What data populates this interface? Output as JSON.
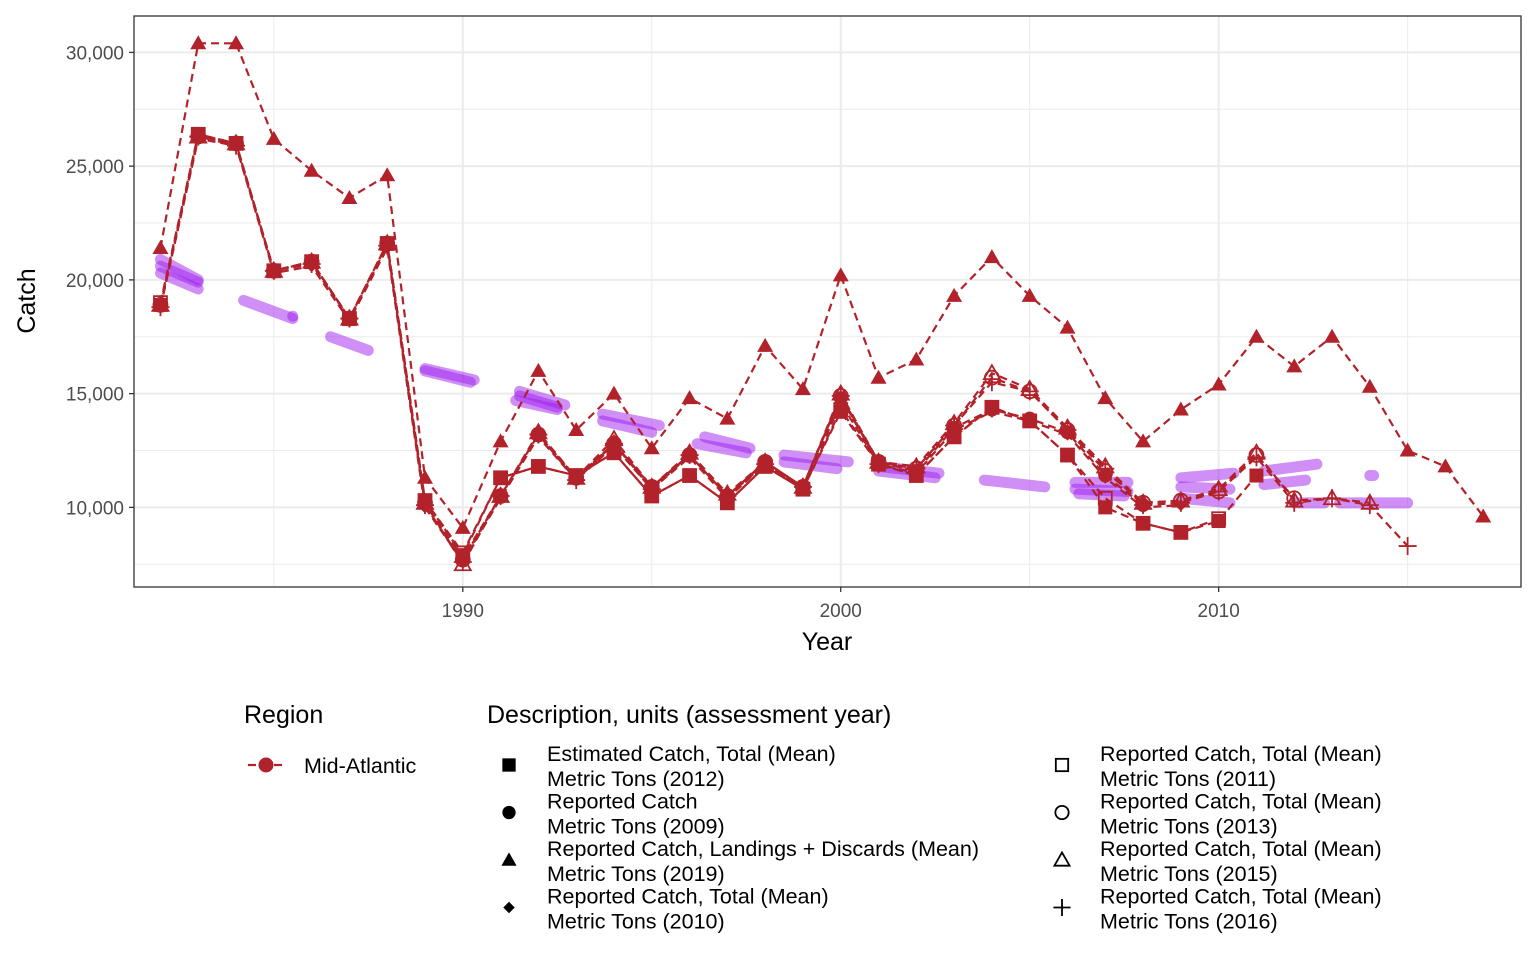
{
  "chart_data": {
    "type": "line",
    "xlabel": "Year",
    "ylabel": "Catch",
    "xlim": [
      1981.3,
      2018.0
    ],
    "ylim": [
      6500,
      31600
    ],
    "x_ticks": [
      1990,
      2000,
      2010
    ],
    "x_tick_labels": [
      "1990",
      "2000",
      "2010"
    ],
    "y_ticks": [
      10000,
      15000,
      20000,
      25000,
      30000
    ],
    "y_tick_labels": [
      "10,000",
      "15,000",
      "20,000",
      "25,000",
      "30,000"
    ],
    "grid": true,
    "colors": {
      "series": "#B2222A",
      "trend": "#A020F0",
      "panel_border": "#333333",
      "grid": "#EBEBEB"
    },
    "series": [
      {
        "name": "Estimated Catch, Total (Mean) Metric Tons (2012)",
        "shape": "square",
        "x": [
          1982,
          1983,
          1984,
          1985,
          1986,
          1987,
          1988,
          1989,
          1990,
          1991,
          1992,
          1993,
          1994,
          1995,
          1996,
          1997,
          1998,
          1999,
          2000,
          2001,
          2002,
          2003,
          2004,
          2005,
          2006,
          2007,
          2008,
          2009,
          2010,
          2011
        ],
        "y": [
          18900,
          26400,
          26000,
          20400,
          20800,
          18300,
          21600,
          10300,
          7900,
          11300,
          11800,
          11400,
          12400,
          10500,
          11400,
          10200,
          11800,
          10800,
          14200,
          11900,
          11400,
          13100,
          14400,
          13800,
          12300,
          10000,
          9300,
          8900,
          9400,
          11400
        ]
      },
      {
        "name": "Reported Catch Metric Tons (2009)",
        "shape": "circle",
        "x": [
          1982,
          1983,
          1984,
          1985,
          1986,
          1987,
          1988,
          1989,
          1990,
          1991,
          1992,
          1993,
          1994,
          1995,
          1996,
          1997,
          1998,
          1999,
          2000,
          2001,
          2002,
          2003,
          2004,
          2005,
          2006,
          2007,
          2008
        ],
        "y": [
          18900,
          26300,
          26000,
          20400,
          20800,
          18300,
          21600,
          10200,
          7800,
          10500,
          13200,
          11300,
          12800,
          10900,
          12300,
          10500,
          12000,
          10900,
          14800,
          12000,
          11600,
          13500,
          14300,
          13900,
          13300,
          11400,
          10100
        ]
      },
      {
        "name": "Reported Catch, Landings + Discards (Mean) Metric Tons (2019)",
        "shape": "triangle",
        "x": [
          1982,
          1983,
          1984,
          1985,
          1986,
          1987,
          1988,
          1989,
          1990,
          1991,
          1992,
          1993,
          1994,
          1995,
          1996,
          1997,
          1998,
          1999,
          2000,
          2001,
          2002,
          2003,
          2004,
          2005,
          2006,
          2007,
          2008,
          2009,
          2010,
          2011,
          2012,
          2013,
          2014,
          2015,
          2016,
          2017
        ],
        "y": [
          21400,
          30400,
          30400,
          26200,
          24800,
          23600,
          24600,
          11300,
          9100,
          12900,
          16000,
          13400,
          15000,
          12600,
          14800,
          13900,
          17100,
          15200,
          20200,
          15700,
          16500,
          19300,
          21000,
          19300,
          17900,
          14800,
          12900,
          14300,
          15400,
          17500,
          16200,
          17500,
          15300,
          12500,
          11800,
          9600
        ]
      },
      {
        "name": "Reported Catch, Total (Mean) Metric Tons (2010)",
        "shape": "diamond",
        "x": [
          1982,
          1983,
          1984,
          1985,
          1986,
          1987,
          1988,
          1989,
          1990,
          1991,
          1992,
          1993,
          1994,
          1995,
          1996,
          1997,
          1998,
          1999,
          2000,
          2001,
          2002,
          2003,
          2004,
          2005,
          2006,
          2007,
          2008,
          2009
        ],
        "y": [
          18800,
          26200,
          25900,
          20300,
          20600,
          18200,
          21400,
          10000,
          7600,
          10400,
          13100,
          11200,
          12700,
          10800,
          12200,
          10400,
          11900,
          10800,
          14600,
          11900,
          11500,
          13400,
          14200,
          13800,
          13200,
          11300,
          10000,
          10100
        ]
      },
      {
        "name": "Reported Catch, Total (Mean) Metric Tons (2011)",
        "shape": "open-square",
        "x": [
          1982,
          1983,
          1984,
          1985,
          1986,
          1987,
          1988,
          1989,
          1990,
          1991,
          1992,
          1993,
          1994,
          1995,
          1996,
          1997,
          1998,
          1999,
          2000,
          2001,
          2002,
          2003,
          2004,
          2005,
          2006,
          2007,
          2008,
          2009,
          2010
        ],
        "y": [
          19000,
          26400,
          26000,
          20400,
          20800,
          18300,
          21600,
          10300,
          8000,
          11300,
          11800,
          11400,
          12400,
          10500,
          11400,
          10200,
          11800,
          10800,
          14300,
          11900,
          11400,
          13100,
          14400,
          13800,
          12300,
          10400,
          9300,
          8900,
          9500
        ]
      },
      {
        "name": "Reported Catch, Total (Mean) Metric Tons (2013)",
        "shape": "open-circle",
        "x": [
          1982,
          1983,
          1984,
          1985,
          1986,
          1987,
          1988,
          1989,
          1990,
          1991,
          1992,
          1993,
          1994,
          1995,
          1996,
          1997,
          1998,
          1999,
          2000,
          2001,
          2002,
          2003,
          2004,
          2005,
          2006,
          2007,
          2008,
          2009,
          2010,
          2011,
          2012
        ],
        "y": [
          18900,
          26300,
          26000,
          20400,
          20800,
          18300,
          21600,
          10200,
          7700,
          10500,
          13200,
          11300,
          12800,
          10900,
          12300,
          10500,
          12000,
          10900,
          14900,
          12000,
          11700,
          13600,
          15700,
          15100,
          13400,
          11600,
          10200,
          10300,
          10700,
          12300,
          10400
        ]
      },
      {
        "name": "Reported Catch, Total (Mean) Metric Tons (2015)",
        "shape": "open-triangle",
        "x": [
          1982,
          1983,
          1984,
          1985,
          1986,
          1987,
          1988,
          1989,
          1990,
          1991,
          1992,
          1993,
          1994,
          1995,
          1996,
          1997,
          1998,
          1999,
          2000,
          2001,
          2002,
          2003,
          2004,
          2005,
          2006,
          2007,
          2008,
          2009,
          2010,
          2011,
          2012,
          2013,
          2014
        ],
        "y": [
          18900,
          26300,
          26000,
          20400,
          20800,
          18300,
          21600,
          10200,
          7500,
          10500,
          13300,
          11300,
          13000,
          10900,
          12400,
          10600,
          12000,
          10900,
          15000,
          12000,
          11800,
          13700,
          15900,
          15200,
          13500,
          11800,
          10200,
          10300,
          10800,
          12400,
          10300,
          10400,
          10200
        ]
      },
      {
        "name": "Reported Catch, Total (Mean) Metric Tons (2016)",
        "shape": "plus",
        "x": [
          1982,
          1983,
          1984,
          1985,
          1986,
          1987,
          1988,
          1989,
          1990,
          1991,
          1992,
          1993,
          1994,
          1995,
          1996,
          1997,
          1998,
          1999,
          2000,
          2001,
          2002,
          2003,
          2004,
          2005,
          2006,
          2007,
          2008,
          2009,
          2010,
          2011,
          2012,
          2013,
          2014,
          2015
        ],
        "y": [
          18800,
          26300,
          25900,
          20400,
          20700,
          18300,
          21500,
          10100,
          7600,
          10500,
          13200,
          11200,
          12800,
          10800,
          12300,
          10500,
          11900,
          10900,
          14900,
          11900,
          11700,
          13600,
          15500,
          15100,
          13400,
          11700,
          10100,
          10200,
          10700,
          12200,
          10200,
          10400,
          10100,
          8300
        ]
      }
    ],
    "trend_segments": [
      {
        "x": [
          1982.0,
          1983.0
        ],
        "y": [
          20900,
          20000
        ]
      },
      {
        "x": [
          1982.0,
          1983.0
        ],
        "y": [
          20600,
          19900
        ]
      },
      {
        "x": [
          1982.0,
          1983.0
        ],
        "y": [
          20300,
          19600
        ]
      },
      {
        "x": [
          1984.2,
          1985.5
        ],
        "y": [
          19100,
          18300
        ]
      },
      {
        "x": [
          1985.5,
          1985.5
        ],
        "y": [
          18400,
          18400
        ]
      },
      {
        "x": [
          1986.5,
          1987.5
        ],
        "y": [
          17500,
          16900
        ]
      },
      {
        "x": [
          1989.0,
          1990.3
        ],
        "y": [
          16100,
          15600
        ]
      },
      {
        "x": [
          1989.0,
          1990.2
        ],
        "y": [
          16000,
          15500
        ]
      },
      {
        "x": [
          1991.5,
          1992.7
        ],
        "y": [
          15100,
          14500
        ]
      },
      {
        "x": [
          1991.5,
          1992.5
        ],
        "y": [
          14900,
          14400
        ]
      },
      {
        "x": [
          1991.4,
          1992.5
        ],
        "y": [
          14700,
          14300
        ]
      },
      {
        "x": [
          1993.7,
          1995.2
        ],
        "y": [
          14100,
          13600
        ]
      },
      {
        "x": [
          1993.7,
          1995.0
        ],
        "y": [
          13800,
          13300
        ]
      },
      {
        "x": [
          1996.4,
          1997.6
        ],
        "y": [
          13100,
          12600
        ]
      },
      {
        "x": [
          1996.2,
          1997.5
        ],
        "y": [
          12800,
          12400
        ]
      },
      {
        "x": [
          1998.5,
          2000.2
        ],
        "y": [
          12300,
          12000
        ]
      },
      {
        "x": [
          1998.5,
          1999.9
        ],
        "y": [
          12000,
          11700
        ]
      },
      {
        "x": [
          2001.0,
          2002.6
        ],
        "y": [
          11800,
          11500
        ]
      },
      {
        "x": [
          2001.0,
          2002.5
        ],
        "y": [
          11600,
          11300
        ]
      },
      {
        "x": [
          2003.8,
          2005.4
        ],
        "y": [
          11200,
          10900
        ]
      },
      {
        "x": [
          2006.2,
          2007.6
        ],
        "y": [
          11100,
          11100
        ]
      },
      {
        "x": [
          2006.2,
          2007.6
        ],
        "y": [
          10800,
          10700
        ]
      },
      {
        "x": [
          2006.3,
          2007.5
        ],
        "y": [
          10600,
          10500
        ]
      },
      {
        "x": [
          2009.0,
          2010.4
        ],
        "y": [
          11300,
          11500
        ]
      },
      {
        "x": [
          2009.0,
          2010.3
        ],
        "y": [
          10900,
          10800
        ]
      },
      {
        "x": [
          2009.0,
          2010.3
        ],
        "y": [
          10400,
          10200
        ]
      },
      {
        "x": [
          2011.2,
          2012.6
        ],
        "y": [
          11600,
          11900
        ]
      },
      {
        "x": [
          2011.2,
          2012.3
        ],
        "y": [
          11000,
          11200
        ]
      },
      {
        "x": [
          2012.0,
          2012.8
        ],
        "y": [
          10200,
          10200
        ]
      },
      {
        "x": [
          2014.0,
          2014.1
        ],
        "y": [
          11400,
          11400
        ]
      },
      {
        "x": [
          2013.2,
          2015.0
        ],
        "y": [
          10200,
          10200
        ]
      }
    ],
    "legend": {
      "region_title": "Region",
      "region_label": "Mid-Atlantic",
      "description_title": "Description, units (assessment year)",
      "items": [
        {
          "shape": "square",
          "line1": "Estimated Catch, Total (Mean)",
          "line2": "Metric Tons (2012)"
        },
        {
          "shape": "circle",
          "line1": "Reported Catch",
          "line2": "Metric Tons (2009)"
        },
        {
          "shape": "triangle",
          "line1": "Reported Catch, Landings + Discards (Mean)",
          "line2": "Metric Tons (2019)"
        },
        {
          "shape": "diamond",
          "line1": "Reported Catch, Total (Mean)",
          "line2": "Metric Tons (2010)"
        },
        {
          "shape": "open-square",
          "line1": "Reported Catch, Total (Mean)",
          "line2": "Metric Tons (2011)"
        },
        {
          "shape": "open-circle",
          "line1": "Reported Catch, Total (Mean)",
          "line2": "Metric Tons (2013)"
        },
        {
          "shape": "open-triangle",
          "line1": "Reported Catch, Total (Mean)",
          "line2": "Metric Tons (2015)"
        },
        {
          "shape": "plus",
          "line1": "Reported Catch, Total (Mean)",
          "line2": "Metric Tons (2016)"
        }
      ]
    }
  }
}
